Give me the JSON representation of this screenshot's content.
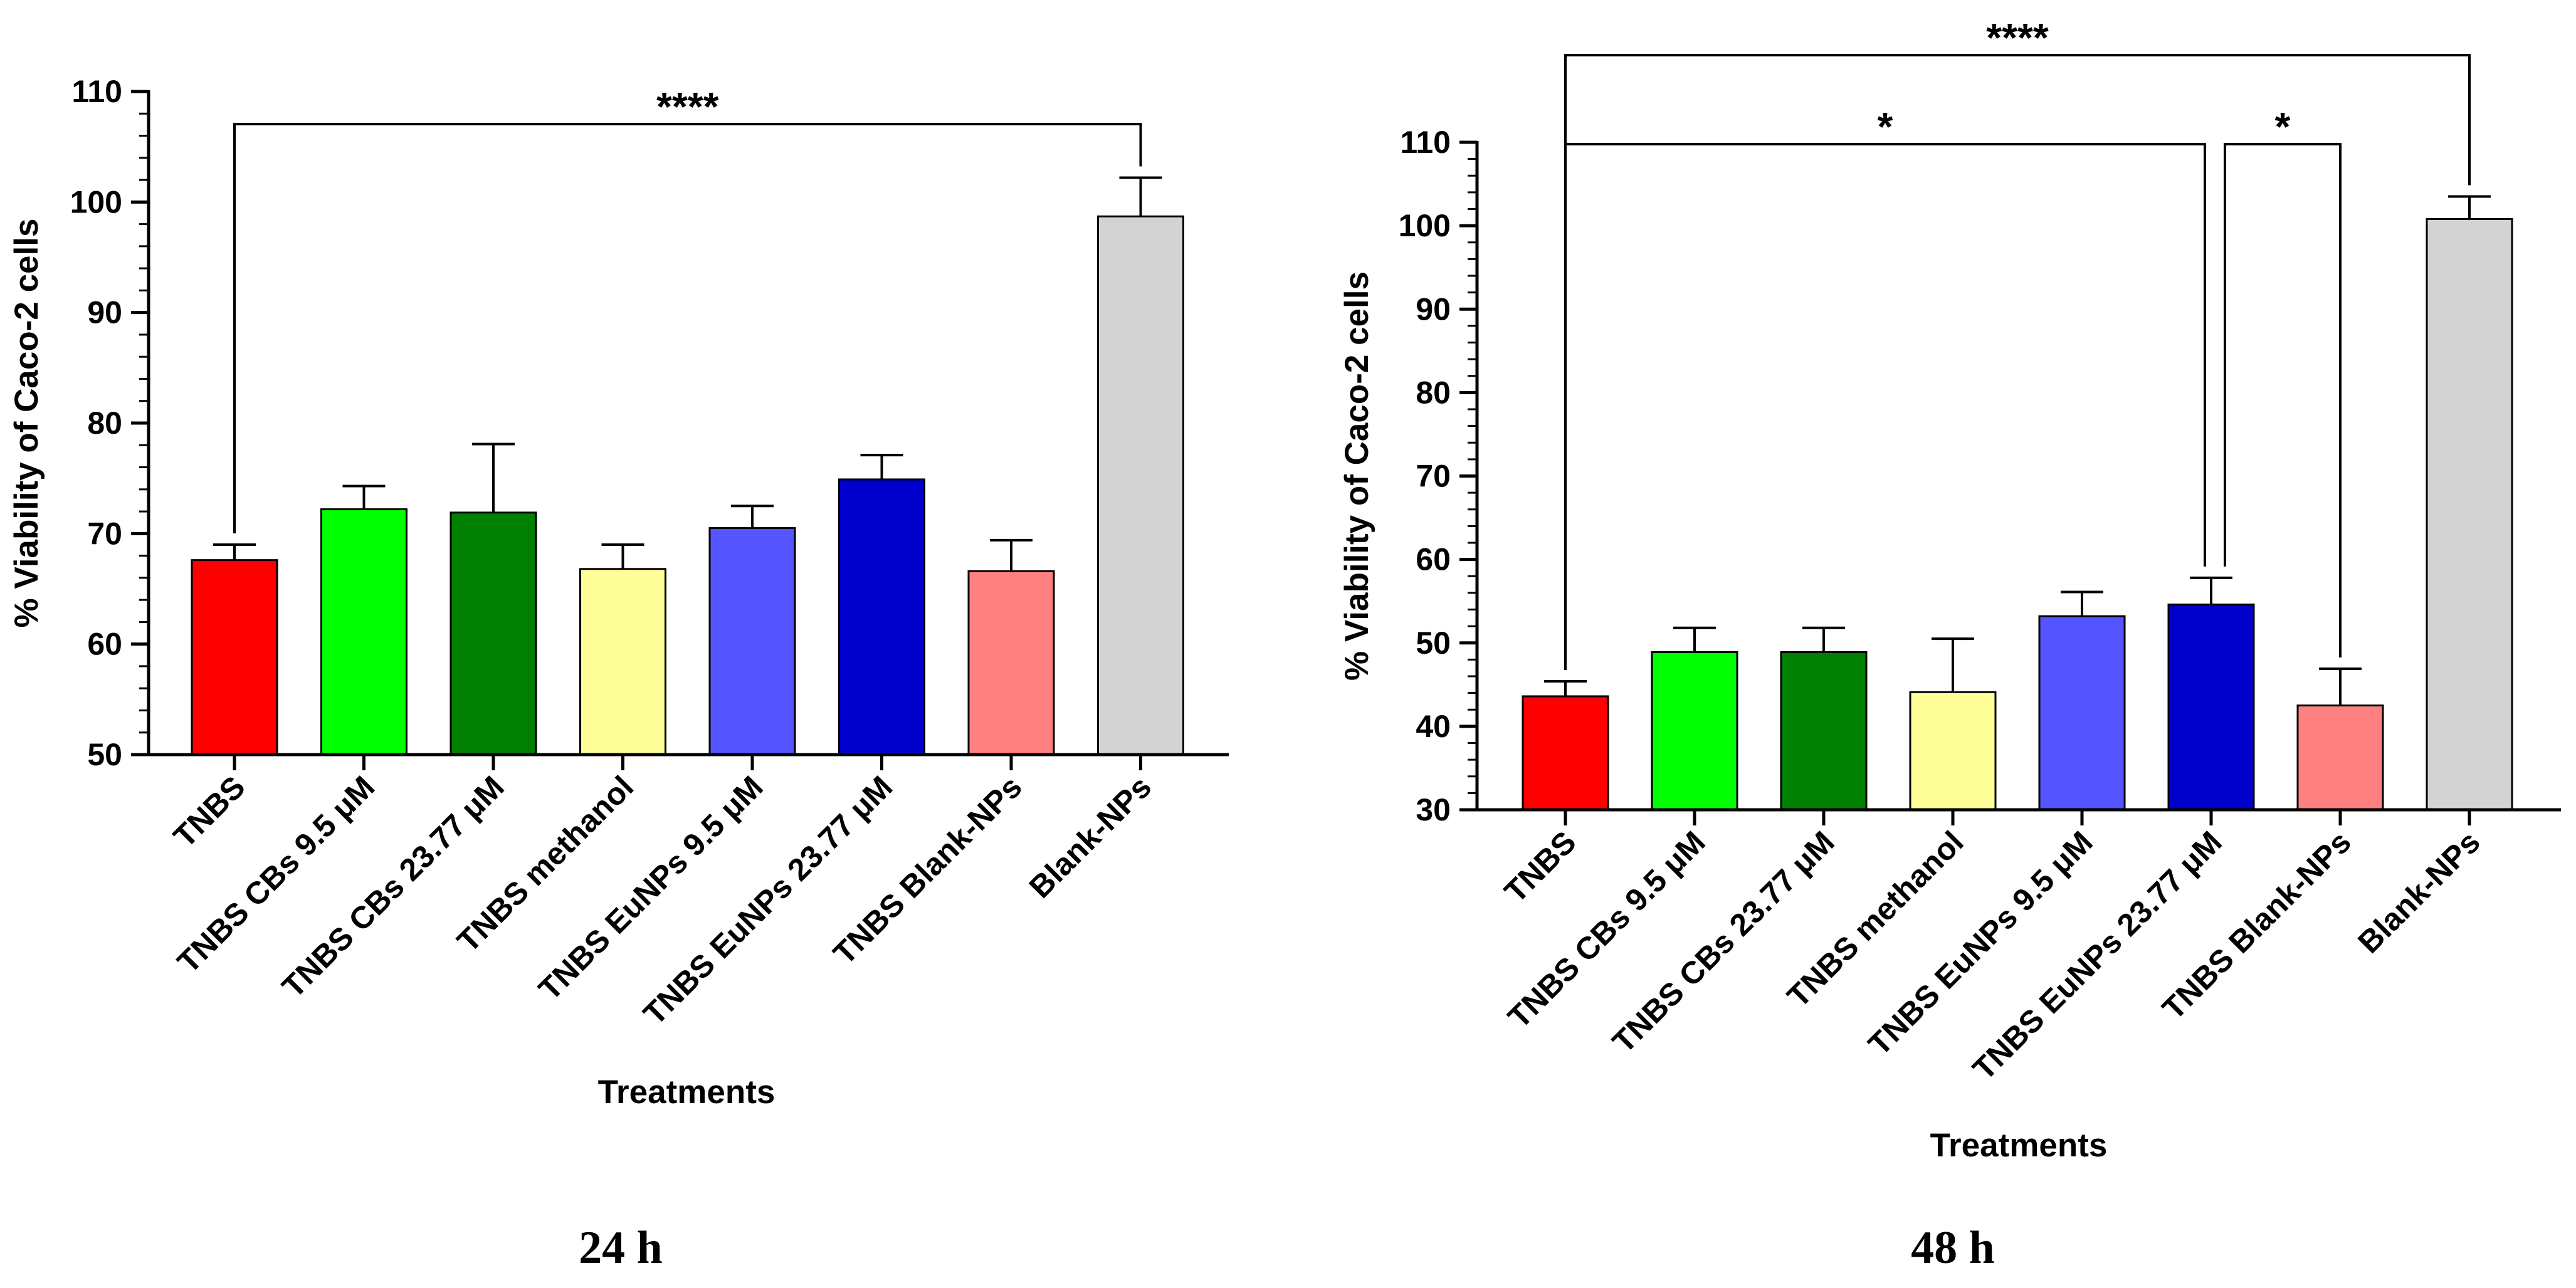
{
  "chart_data": [
    {
      "type": "bar",
      "caption": "24 h",
      "xlabel": "Treatments",
      "ylabel": "% Viability of Caco-2 cells",
      "ylim": [
        50,
        110
      ],
      "yticks": [
        "50",
        "60",
        "70",
        "80",
        "90",
        "100",
        "110"
      ],
      "categories": [
        "TNBS",
        "TNBS CBs 9.5 μM",
        "TNBS CBs 23.77 μM",
        "TNBS methanol",
        "TNBS EuNPs 9.5 μM",
        "TNBS EuNPs 23.77 μM",
        "TNBS Blank-NPs",
        "Blank-NPs"
      ],
      "values": [
        67.6,
        72.2,
        71.9,
        66.8,
        70.5,
        74.9,
        66.6,
        98.7
      ],
      "errors": [
        1.4,
        2.1,
        6.2,
        2.2,
        2.0,
        2.2,
        2.8,
        3.5
      ],
      "colors": [
        "#ff0000",
        "#00ff00",
        "#008000",
        "#ffff99",
        "#5555ff",
        "#0000cc",
        "#ff8080",
        "#d3d3d3"
      ],
      "significance": [
        {
          "from": 0,
          "to": 7,
          "label": "****",
          "level": 1
        }
      ]
    },
    {
      "type": "bar",
      "caption": "48 h",
      "xlabel": "Treatments",
      "ylabel": "% Viability of Caco-2 cells",
      "ylim": [
        30,
        110
      ],
      "yticks": [
        "30",
        "40",
        "50",
        "60",
        "70",
        "80",
        "90",
        "100",
        "110"
      ],
      "categories": [
        "TNBS",
        "TNBS CBs 9.5 μM",
        "TNBS CBs 23.77 μM",
        "TNBS methanol",
        "TNBS EuNPs 9.5 μM",
        "TNBS EuNPs 23.77 μM",
        "TNBS Blank-NPs",
        "Blank-NPs"
      ],
      "values": [
        43.6,
        48.9,
        48.9,
        44.1,
        53.2,
        54.6,
        42.5,
        100.8
      ],
      "errors": [
        1.8,
        2.9,
        2.9,
        6.4,
        2.9,
        3.2,
        4.4,
        2.7
      ],
      "colors": [
        "#ff0000",
        "#00ff00",
        "#008000",
        "#ffff99",
        "#5555ff",
        "#0000cc",
        "#ff8080",
        "#d3d3d3"
      ],
      "significance": [
        {
          "from": 0,
          "to": 5,
          "label": "*",
          "level": 0
        },
        {
          "from": 5,
          "to": 6,
          "label": "*",
          "level": 0
        },
        {
          "from": 0,
          "to": 7,
          "label": "****",
          "level": 1
        }
      ]
    }
  ]
}
